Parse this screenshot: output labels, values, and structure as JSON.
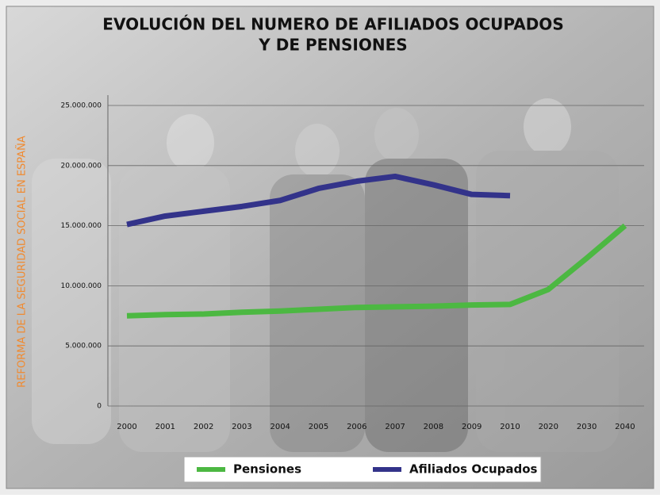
{
  "chart_data": {
    "type": "line",
    "title": "EVOLUCIÓN DEL NUMERO DE AFILIADOS OCUPADOS",
    "subtitle": "Y DE PENSIONES",
    "y_label": "REFORMA DE LA SEGURIDAD SOCIAL  EN ESPAÑA",
    "categories": [
      "2000",
      "2001",
      "2002",
      "2003",
      "2004",
      "2005",
      "2006",
      "2007",
      "2008",
      "2009",
      "2010",
      "2020",
      "2030",
      "2040"
    ],
    "ylim": [
      0,
      25000000
    ],
    "yticks": [
      0,
      {
        "value": 5000000,
        "label": "5.000.000"
      },
      {
        "value": 10000000,
        "label": "10.000.000"
      },
      {
        "value": 15000000,
        "label": "15.000.000"
      },
      {
        "value": 20000000,
        "label": "20.000.000"
      },
      {
        "value": 25000000,
        "label": "25.000.000"
      }
    ],
    "grid": true,
    "series": [
      {
        "name": "Pensiones",
        "color": "#4cb842",
        "values": [
          7500000,
          7600000,
          7650000,
          7800000,
          7900000,
          8050000,
          8200000,
          8250000,
          8300000,
          8400000,
          8450000,
          9700000,
          12300000,
          15000000
        ]
      },
      {
        "name": "Afiliados Ocupados",
        "color": "#33338a",
        "values": [
          15100000,
          15800000,
          16200000,
          16600000,
          17100000,
          18100000,
          18700000,
          19100000,
          18400000,
          17600000,
          17500000,
          null,
          null,
          null
        ]
      }
    ]
  }
}
